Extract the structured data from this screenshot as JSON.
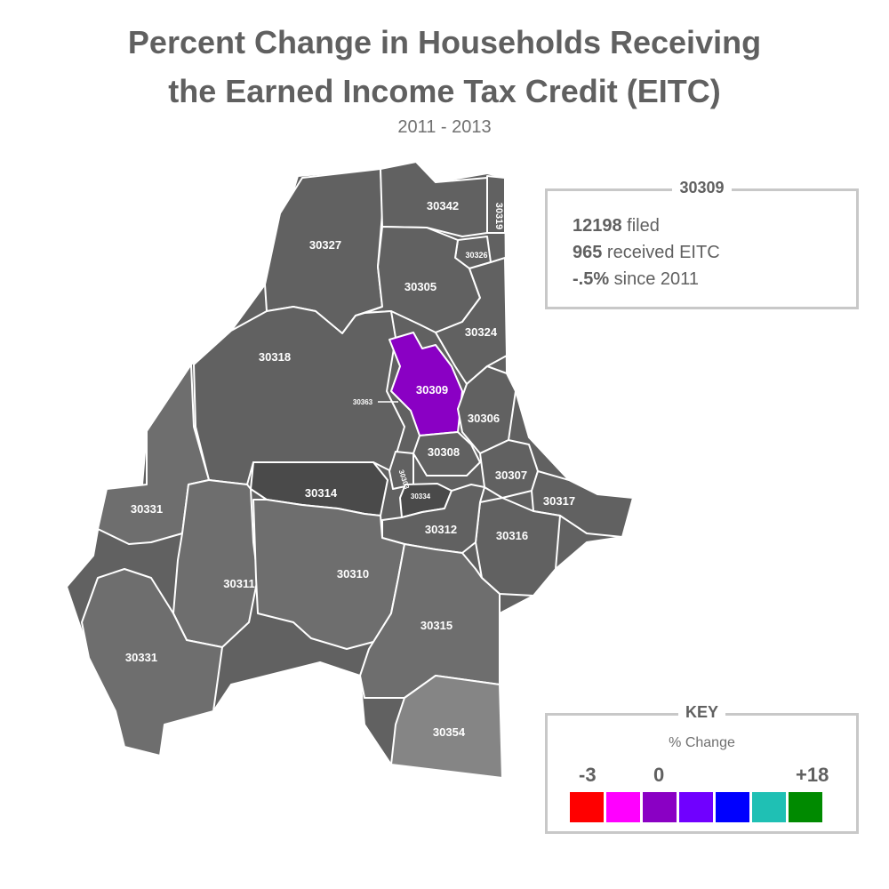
{
  "title_line1": "Percent Change in Households Receiving",
  "title_line2": "the Earned Income Tax Credit (EITC)",
  "subtitle": "2011 - 2013",
  "info": {
    "zip": "30309",
    "filed_value": "12198",
    "filed_label": " filed",
    "eitc_value": "965",
    "eitc_label": " received EITC",
    "change_value": "-.5%",
    "change_label": " since 2011"
  },
  "key": {
    "title": "KEY",
    "subtitle": "% Change",
    "min_label": "-3",
    "mid_label": "0",
    "max_label": "+18",
    "colors": [
      "#ff0000",
      "#ff00ff",
      "#8a00c4",
      "#7000ff",
      "#0000ff",
      "#1fc0b4",
      "#008a00"
    ]
  },
  "colors": {
    "zone_default": "#616161",
    "zone_light": "#7a7a7a",
    "zone_lighter": "#858585",
    "zone_dark": "#4a4a4a",
    "zone_selected": "#8a00c4",
    "text": "#606060"
  },
  "zip_labels": {
    "z30342": "30342",
    "z30319": "30319",
    "z30327": "30327",
    "z30326": "30326",
    "z30305": "30305",
    "z30324": "30324",
    "z30318": "30318",
    "z30309": "30309",
    "z30363": "30363",
    "z30306": "30306",
    "z30308": "30308",
    "z30303": "30303",
    "z30314": "30314",
    "z30334": "30334",
    "z30307": "30307",
    "z30317": "30317",
    "z30331a": "30331",
    "z30312": "30312",
    "z30316": "30316",
    "z30311": "30311",
    "z30310": "30310",
    "z30315": "30315",
    "z30331b": "30331",
    "z30354": "30354"
  }
}
